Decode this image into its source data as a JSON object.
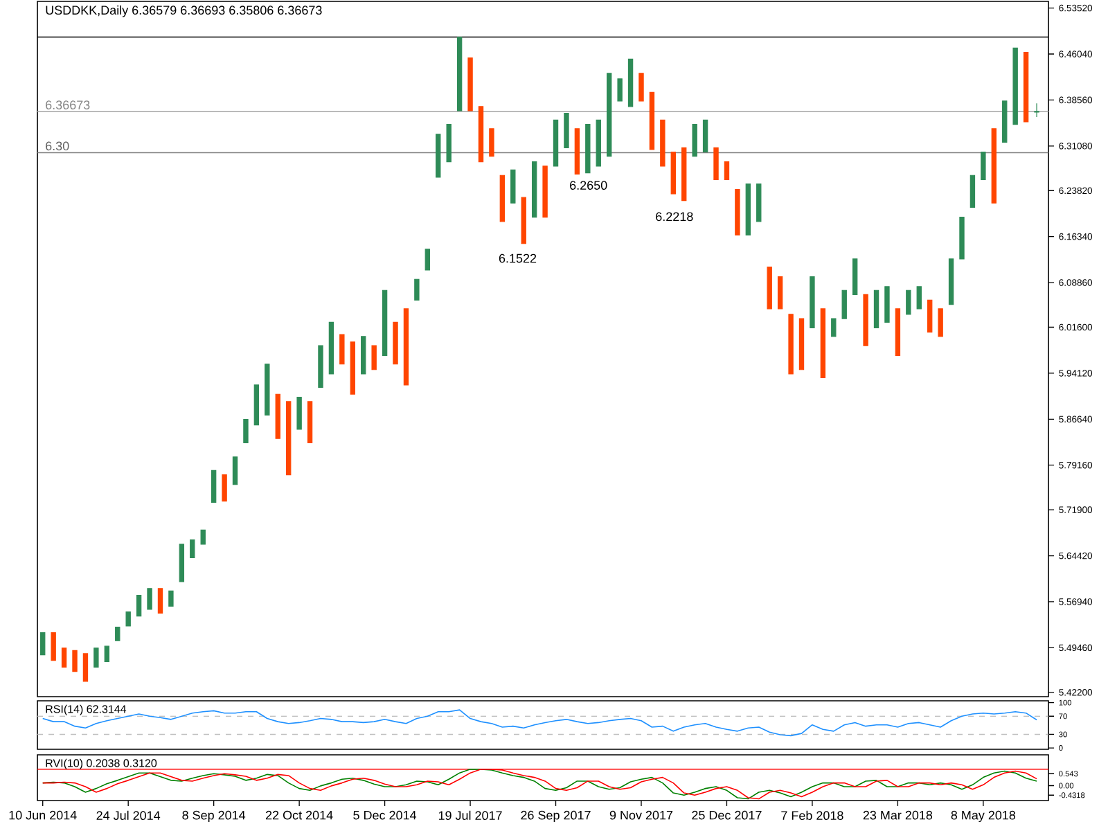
{
  "chart_data": [
    {
      "type": "candlestick",
      "title": "USDDKK,Daily  6.36579 6.36693 6.35806 6.36673",
      "ohlc": [
        [
          5.483,
          5.519,
          5.483,
          5.519
        ],
        [
          5.519,
          5.519,
          5.474,
          5.474
        ],
        [
          5.494,
          5.494,
          5.463,
          5.463
        ],
        [
          5.49,
          5.49,
          5.456,
          5.456
        ],
        [
          5.485,
          5.485,
          5.44,
          5.44
        ],
        [
          5.463,
          5.494,
          5.463,
          5.494
        ],
        [
          5.472,
          5.497,
          5.472,
          5.497
        ],
        [
          5.506,
          5.528,
          5.506,
          5.528
        ],
        [
          5.53,
          5.553,
          5.53,
          5.553
        ],
        [
          5.546,
          5.58,
          5.546,
          5.58
        ],
        [
          5.557,
          5.591,
          5.557,
          5.591
        ],
        [
          5.591,
          5.591,
          5.551,
          5.551
        ],
        [
          5.562,
          5.587,
          5.562,
          5.587
        ],
        [
          5.602,
          5.663,
          5.602,
          5.663
        ],
        [
          5.641,
          5.67,
          5.641,
          5.67
        ],
        [
          5.663,
          5.686,
          5.663,
          5.686
        ],
        [
          5.731,
          5.783,
          5.731,
          5.783
        ],
        [
          5.776,
          5.776,
          5.733,
          5.733
        ],
        [
          5.76,
          5.805,
          5.76,
          5.805
        ],
        [
          5.828,
          5.866,
          5.828,
          5.866
        ],
        [
          5.857,
          5.922,
          5.857,
          5.922
        ],
        [
          5.873,
          5.956,
          5.873,
          5.956
        ],
        [
          5.907,
          5.907,
          5.835,
          5.835
        ],
        [
          5.895,
          5.895,
          5.776,
          5.776
        ],
        [
          5.85,
          5.902,
          5.85,
          5.902
        ],
        [
          5.895,
          5.895,
          5.828,
          5.828
        ],
        [
          5.918,
          5.986,
          5.918,
          5.986
        ],
        [
          5.94,
          6.024,
          5.94,
          6.024
        ],
        [
          6.004,
          6.004,
          5.956,
          5.956
        ],
        [
          5.992,
          5.992,
          5.907,
          5.907
        ],
        [
          5.94,
          6.001,
          5.94,
          6.001
        ],
        [
          5.986,
          5.986,
          5.947,
          5.947
        ],
        [
          5.97,
          6.076,
          5.97,
          6.076
        ],
        [
          6.024,
          6.024,
          5.956,
          5.956
        ],
        [
          6.046,
          6.046,
          5.922,
          5.922
        ],
        [
          6.06,
          6.094,
          6.06,
          6.094
        ],
        [
          6.109,
          6.143,
          6.109,
          6.143
        ],
        [
          6.26,
          6.33,
          6.26,
          6.33
        ],
        [
          6.285,
          6.346,
          6.285,
          6.346
        ],
        [
          6.368,
          6.488,
          6.368,
          6.488
        ],
        [
          6.454,
          6.454,
          6.368,
          6.368
        ],
        [
          6.375,
          6.375,
          6.285,
          6.285
        ],
        [
          6.339,
          6.339,
          6.294,
          6.294
        ],
        [
          6.263,
          6.263,
          6.188,
          6.188
        ],
        [
          6.218,
          6.272,
          6.218,
          6.272
        ],
        [
          6.227,
          6.227,
          6.152,
          6.152
        ],
        [
          6.195,
          6.285,
          6.195,
          6.285
        ],
        [
          6.278,
          6.278,
          6.195,
          6.195
        ],
        [
          6.278,
          6.353,
          6.278,
          6.353
        ],
        [
          6.308,
          6.364,
          6.308,
          6.364
        ],
        [
          6.339,
          6.339,
          6.265,
          6.265
        ],
        [
          6.267,
          6.346,
          6.267,
          6.346
        ],
        [
          6.278,
          6.353,
          6.278,
          6.353
        ],
        [
          6.294,
          6.429,
          6.294,
          6.429
        ],
        [
          6.384,
          6.42,
          6.384,
          6.42
        ],
        [
          6.375,
          6.452,
          6.375,
          6.452
        ],
        [
          6.429,
          6.429,
          6.384,
          6.384
        ],
        [
          6.398,
          6.398,
          6.305,
          6.305
        ],
        [
          6.353,
          6.353,
          6.278,
          6.278
        ],
        [
          6.301,
          6.301,
          6.233,
          6.233
        ],
        [
          6.308,
          6.308,
          6.222,
          6.222
        ],
        [
          6.294,
          6.346,
          6.294,
          6.346
        ],
        [
          6.301,
          6.353,
          6.301,
          6.353
        ],
        [
          6.308,
          6.308,
          6.256,
          6.256
        ],
        [
          6.285,
          6.285,
          6.256,
          6.256
        ],
        [
          6.24,
          6.24,
          6.166,
          6.166
        ],
        [
          6.166,
          6.249,
          6.166,
          6.249
        ],
        [
          6.188,
          6.249,
          6.188,
          6.249
        ],
        [
          6.114,
          6.114,
          6.046,
          6.046
        ],
        [
          6.098,
          6.098,
          6.046,
          6.046
        ],
        [
          6.037,
          6.037,
          5.94,
          5.94
        ],
        [
          6.03,
          6.03,
          5.947,
          5.947
        ],
        [
          6.015,
          6.098,
          6.015,
          6.098
        ],
        [
          6.046,
          6.046,
          5.934,
          5.934
        ],
        [
          6.001,
          6.03,
          6.001,
          6.03
        ],
        [
          6.03,
          6.076,
          6.03,
          6.076
        ],
        [
          6.069,
          6.127,
          6.069,
          6.127
        ],
        [
          6.069,
          6.069,
          5.986,
          5.986
        ],
        [
          6.015,
          6.076,
          6.015,
          6.076
        ],
        [
          6.024,
          6.082,
          6.024,
          6.082
        ],
        [
          6.046,
          6.046,
          5.97,
          5.97
        ],
        [
          6.037,
          6.076,
          6.037,
          6.076
        ],
        [
          6.046,
          6.082,
          6.046,
          6.082
        ],
        [
          6.06,
          6.06,
          6.008,
          6.008
        ],
        [
          6.046,
          6.046,
          6.001,
          6.001
        ],
        [
          6.053,
          6.127,
          6.053,
          6.127
        ],
        [
          6.127,
          6.195,
          6.127,
          6.195
        ],
        [
          6.211,
          6.263,
          6.211,
          6.263
        ],
        [
          6.256,
          6.301,
          6.256,
          6.301
        ],
        [
          6.339,
          6.339,
          6.218,
          6.218
        ],
        [
          6.317,
          6.384,
          6.317,
          6.384
        ],
        [
          6.346,
          6.47,
          6.346,
          6.47
        ],
        [
          6.463,
          6.463,
          6.35,
          6.35
        ],
        [
          6.366,
          6.38,
          6.358,
          6.367
        ]
      ],
      "colors": [
        "#2e8b57",
        "#ff4500",
        "#ff4500",
        "#ff4500",
        "#ff4500",
        "#2e8b57",
        "#2e8b57",
        "#2e8b57",
        "#2e8b57",
        "#2e8b57",
        "#2e8b57",
        "#ff4500",
        "#2e8b57",
        "#2e8b57",
        "#2e8b57",
        "#2e8b57",
        "#2e8b57",
        "#ff4500",
        "#2e8b57",
        "#2e8b57",
        "#2e8b57",
        "#2e8b57",
        "#ff4500",
        "#ff4500",
        "#2e8b57",
        "#ff4500",
        "#2e8b57",
        "#2e8b57",
        "#ff4500",
        "#ff4500",
        "#2e8b57",
        "#ff4500",
        "#2e8b57",
        "#ff4500",
        "#ff4500",
        "#2e8b57",
        "#2e8b57",
        "#2e8b57",
        "#2e8b57",
        "#2e8b57",
        "#ff4500",
        "#ff4500",
        "#ff4500",
        "#ff4500",
        "#2e8b57",
        "#ff4500",
        "#2e8b57",
        "#ff4500",
        "#2e8b57",
        "#2e8b57",
        "#ff4500",
        "#2e8b57",
        "#2e8b57",
        "#2e8b57",
        "#2e8b57",
        "#2e8b57",
        "#ff4500",
        "#ff4500",
        "#ff4500",
        "#ff4500",
        "#ff4500",
        "#2e8b57",
        "#2e8b57",
        "#ff4500",
        "#ff4500",
        "#ff4500",
        "#2e8b57",
        "#2e8b57",
        "#ff4500",
        "#ff4500",
        "#ff4500",
        "#ff4500",
        "#2e8b57",
        "#ff4500",
        "#2e8b57",
        "#2e8b57",
        "#2e8b57",
        "#ff4500",
        "#2e8b57",
        "#2e8b57",
        "#ff4500",
        "#2e8b57",
        "#2e8b57",
        "#ff4500",
        "#ff4500",
        "#2e8b57",
        "#2e8b57",
        "#2e8b57",
        "#2e8b57",
        "#ff4500",
        "#2e8b57",
        "#2e8b57",
        "#ff4500",
        "#2e8b57"
      ],
      "ylim": [
        5.415,
        6.546
      ],
      "yticks": [
        {
          "value": 6.5352,
          "label": "6.53520"
        },
        {
          "value": 6.4604,
          "label": "6.46040"
        },
        {
          "value": 6.3856,
          "label": "6.38560"
        },
        {
          "value": 6.3108,
          "label": "6.31080"
        },
        {
          "value": 6.2382,
          "label": "6.23820"
        },
        {
          "value": 6.1634,
          "label": "6.16340"
        },
        {
          "value": 6.0886,
          "label": "6.08860"
        },
        {
          "value": 6.016,
          "label": "6.01600"
        },
        {
          "value": 5.9412,
          "label": "5.94120"
        },
        {
          "value": 5.8664,
          "label": "5.86640"
        },
        {
          "value": 5.7916,
          "label": "5.79160"
        },
        {
          "value": 5.719,
          "label": "5.71900"
        },
        {
          "value": 5.6442,
          "label": "5.64420"
        },
        {
          "value": 5.5694,
          "label": "5.56940"
        },
        {
          "value": 5.4946,
          "label": "5.49460"
        },
        {
          "value": 5.422,
          "label": "5.42200"
        }
      ],
      "tick_labels": "y",
      "ref_lines": [
        {
          "axis": "y",
          "value": 6.488,
          "color": "#000000"
        },
        {
          "axis": "y",
          "value": 6.36673,
          "label": "6.36673",
          "color": "#b0b0b0"
        },
        {
          "axis": "y",
          "value": 6.3,
          "label": "6.30",
          "color": "#808080"
        }
      ],
      "annotations": [
        "6.1522",
        "6.2650",
        "6.2218"
      ]
    },
    {
      "type": "line",
      "title": "RSI(14) 62.3144",
      "series": [
        {
          "color": "#1e90ff",
          "values": [
            65,
            58,
            58,
            48,
            44,
            54,
            60,
            65,
            70,
            75,
            70,
            67,
            63,
            70,
            77,
            80,
            82,
            77,
            77,
            80,
            80,
            65,
            58,
            54,
            56,
            60,
            65,
            63,
            58,
            58,
            56,
            58,
            63,
            58,
            54,
            65,
            70,
            80,
            80,
            84,
            65,
            58,
            54,
            46,
            48,
            44,
            51,
            56,
            60,
            63,
            58,
            54,
            56,
            60,
            63,
            65,
            60,
            46,
            48,
            37,
            46,
            51,
            54,
            46,
            41,
            37,
            44,
            46,
            35,
            29,
            27,
            32,
            51,
            41,
            37,
            51,
            56,
            48,
            51,
            51,
            46,
            54,
            56,
            51,
            46,
            60,
            70,
            75,
            77,
            75,
            77,
            80,
            77,
            62
          ]
        }
      ],
      "ylim": [
        -3,
        104
      ],
      "yticks": [
        0,
        30,
        70,
        100
      ],
      "tick_labels": "y",
      "ref_lines": [
        {
          "axis": "y",
          "value": 70,
          "color": "#c0c0c0",
          "line_style": "dashed"
        },
        {
          "axis": "y",
          "value": 30,
          "color": "#c0c0c0",
          "line_style": "dashed"
        }
      ]
    },
    {
      "type": "line",
      "title": "RVI(10) 0.2038 0.3120",
      "categories": [
        "10 Jun 2014",
        null,
        null,
        null,
        null,
        null,
        null,
        null,
        "24 Jul 2014",
        null,
        null,
        null,
        null,
        null,
        null,
        null,
        "8 Sep 2014",
        null,
        null,
        null,
        null,
        null,
        null,
        null,
        "22 Oct 2014",
        null,
        null,
        null,
        null,
        null,
        null,
        null,
        "5 Dec 2014",
        null,
        null,
        null,
        null,
        null,
        null,
        null,
        "19 Jul 2017",
        null,
        null,
        null,
        null,
        null,
        null,
        null,
        "26 Sep 2017",
        null,
        null,
        null,
        null,
        null,
        null,
        null,
        "9 Nov 2017",
        null,
        null,
        null,
        null,
        null,
        null,
        null,
        "25 Dec 2017",
        null,
        null,
        null,
        null,
        null,
        null,
        null,
        "7 Feb 2018",
        null,
        null,
        null,
        null,
        null,
        null,
        null,
        "23 Mar 2018",
        null,
        null,
        null,
        null,
        null,
        null,
        null,
        "8 May 2018",
        null,
        null,
        null,
        null,
        null
      ],
      "series": [
        {
          "color": "#008000",
          "values": [
            0.123,
            0.157,
            0.123,
            -0.045,
            -0.297,
            -0.129,
            0.089,
            0.241,
            0.409,
            0.577,
            0.577,
            0.409,
            0.241,
            0.207,
            0.341,
            0.459,
            0.543,
            0.493,
            0.425,
            0.241,
            0.341,
            0.509,
            0.459,
            0.123,
            -0.129,
            -0.213,
            -0.011,
            0.123,
            0.291,
            0.341,
            0.241,
            0.073,
            -0.045,
            -0.045,
            0.039,
            0.207,
            0.173,
            0.039,
            0.291,
            0.577,
            0.745,
            0.745,
            0.711,
            0.577,
            0.459,
            0.375,
            0.207,
            -0.129,
            -0.213,
            -0.095,
            0.207,
            0.207,
            -0.045,
            -0.163,
            -0.095,
            0.173,
            0.291,
            0.375,
            0.123,
            -0.331,
            -0.431,
            -0.297,
            -0.129,
            -0.045,
            -0.213,
            -0.549,
            -0.599,
            -0.297,
            -0.213,
            -0.331,
            -0.499,
            -0.297,
            -0.045,
            0.123,
            0.123,
            -0.045,
            -0.045,
            0.207,
            0.241,
            -0.045,
            -0.045,
            0.123,
            0.123,
            0.039,
            0.123,
            0.039,
            -0.163,
            0.039,
            0.375,
            0.577,
            0.661,
            0.577,
            0.341,
            0.204
          ]
        },
        {
          "color": "#ff0000",
          "values": [
            0.123,
            0.123,
            0.157,
            0.123,
            -0.045,
            -0.297,
            -0.129,
            0.089,
            0.241,
            0.409,
            0.577,
            0.577,
            0.409,
            0.241,
            0.207,
            0.341,
            0.459,
            0.543,
            0.493,
            0.425,
            0.241,
            0.341,
            0.509,
            0.459,
            0.123,
            -0.129,
            -0.213,
            -0.011,
            0.123,
            0.291,
            0.341,
            0.241,
            0.073,
            -0.045,
            -0.045,
            0.039,
            0.207,
            0.173,
            0.039,
            0.291,
            0.577,
            0.745,
            0.745,
            0.711,
            0.577,
            0.459,
            0.375,
            0.207,
            -0.129,
            -0.213,
            -0.095,
            0.207,
            0.207,
            -0.045,
            -0.163,
            -0.095,
            0.173,
            0.291,
            0.375,
            0.123,
            -0.331,
            -0.431,
            -0.297,
            -0.129,
            -0.045,
            -0.213,
            -0.549,
            -0.599,
            -0.297,
            -0.213,
            -0.331,
            -0.499,
            -0.297,
            -0.045,
            0.123,
            0.123,
            -0.045,
            -0.045,
            0.207,
            0.241,
            -0.045,
            -0.045,
            0.123,
            0.123,
            0.039,
            0.123,
            0.039,
            -0.163,
            0.039,
            0.375,
            0.577,
            0.661,
            0.577,
            0.312
          ]
        }
      ],
      "ylim": [
        -0.676,
        1.4
      ],
      "yticks": [
        -0.4318,
        {
          "value": 0,
          "label": "0.00"
        },
        0.543
      ],
      "ref_lines": [
        {
          "axis": "y",
          "value": 0.75,
          "color": "#ff0000"
        }
      ]
    }
  ]
}
